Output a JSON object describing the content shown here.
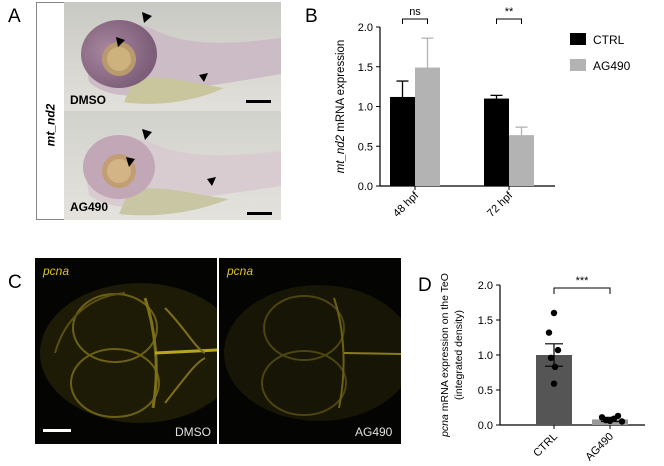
{
  "panels": {
    "A": {
      "letter": "A",
      "gene_label": "mt_nd2",
      "images": [
        {
          "label": "DMSO",
          "arrowheads": 3
        },
        {
          "label": "AG490",
          "arrowheads": 3
        }
      ]
    },
    "B": {
      "letter": "B"
    },
    "C": {
      "letter": "C",
      "images": [
        {
          "stain": "pcna",
          "label": "DMSO"
        },
        {
          "stain": "pcna",
          "label": "AG490"
        }
      ]
    },
    "D": {
      "letter": "D"
    }
  },
  "chart_data": [
    {
      "id": "B",
      "type": "bar",
      "categories": [
        "48 hpf",
        "72 hpf"
      ],
      "series": [
        {
          "name": "CTRL",
          "color": "#000000",
          "values": [
            1.12,
            1.1
          ],
          "errors": [
            0.2,
            0.04
          ]
        },
        {
          "name": "AG490",
          "color": "#b3b3b3",
          "values": [
            1.49,
            0.64
          ],
          "errors": [
            0.37,
            0.1
          ]
        }
      ],
      "ylabel_italic": "mt_nd2",
      "ylabel_rest": " mRNA expression",
      "ylim": [
        0,
        2.0
      ],
      "yticks": [
        "0.0",
        "0.5",
        "1.0",
        "1.5",
        "2.0"
      ],
      "significance": [
        "ns",
        "**"
      ],
      "legend_position": "right",
      "grid": false
    },
    {
      "id": "D",
      "type": "bar",
      "categories": [
        "CTRL",
        "AG490"
      ],
      "values": [
        1.0,
        0.08
      ],
      "errors": [
        0.16,
        0.03
      ],
      "colors": [
        "#555555",
        "#999999"
      ],
      "points": [
        [
          1.6,
          1.32,
          1.07,
          0.96,
          0.83,
          0.59
        ],
        [
          0.13,
          0.11,
          0.09,
          0.07,
          0.06,
          0.05
        ]
      ],
      "ylabel_italic": "pcna",
      "ylabel_rest": " mRNA expression on the TeO",
      "ylabel_line2": "(integrated density)",
      "ylim": [
        0,
        2.0
      ],
      "yticks": [
        "0.0",
        "0.5",
        "1.0",
        "1.5",
        "2.0"
      ],
      "significance": "***",
      "grid": false
    }
  ]
}
